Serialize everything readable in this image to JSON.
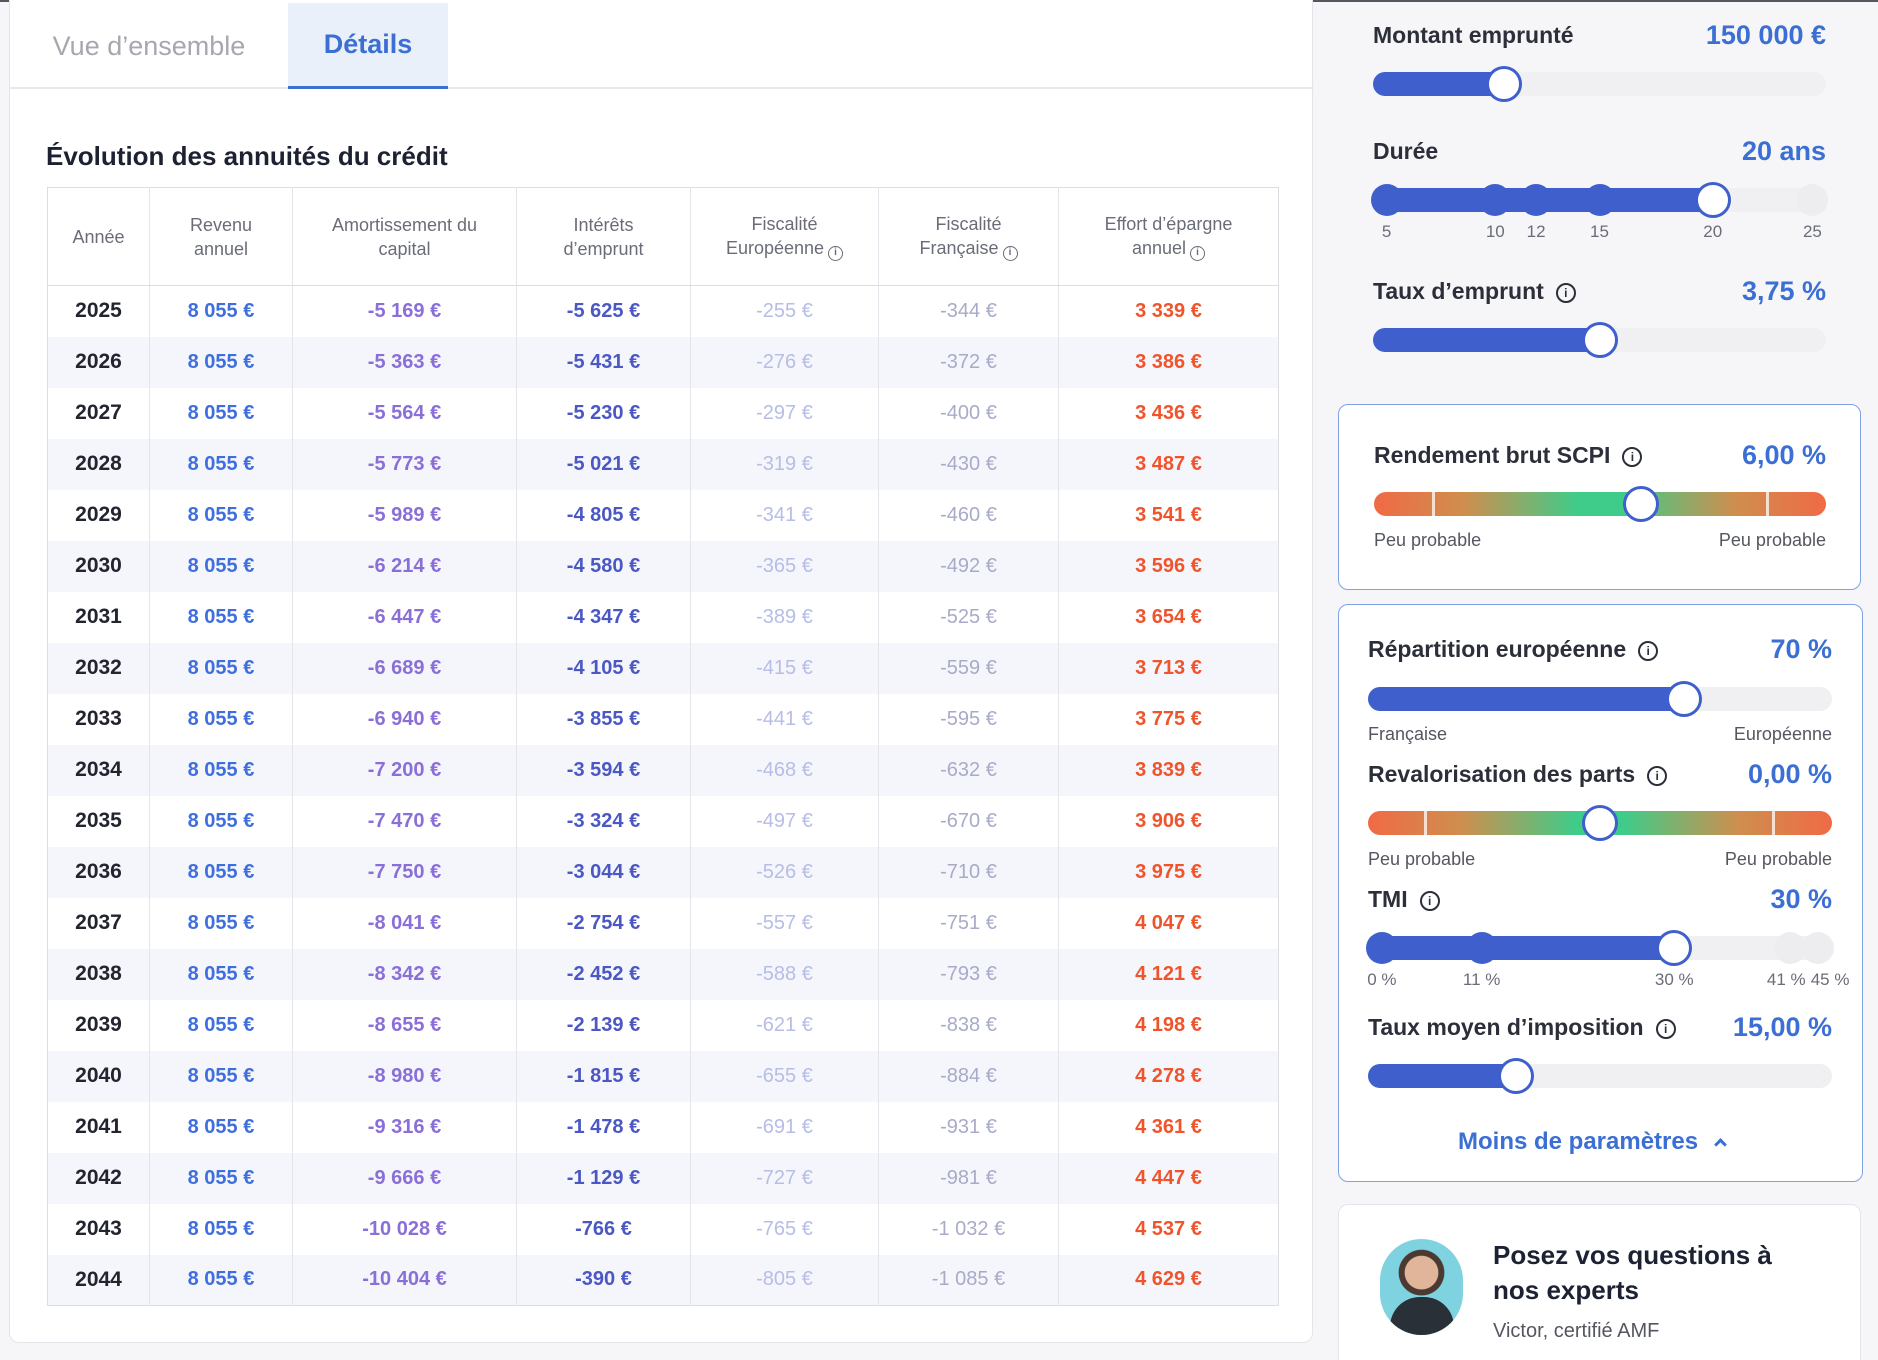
{
  "tabs": [
    {
      "label": "Vue d’ensemble",
      "active": false
    },
    {
      "label": "Détails",
      "active": true
    }
  ],
  "table": {
    "title": "Évolution des annuités du crédit",
    "headers": [
      {
        "label": "Année",
        "info": false
      },
      {
        "label": "Revenu annuel",
        "info": false
      },
      {
        "label": "Amortissement du capital",
        "info": false
      },
      {
        "label": "Intérêts d’emprunt",
        "info": false
      },
      {
        "label": "Fiscalité Européenne",
        "info": true
      },
      {
        "label": "Fiscalité Française",
        "info": true
      },
      {
        "label": "Effort d’épargne annuel",
        "info": true
      }
    ],
    "rows": [
      [
        "2025",
        "8 055 €",
        "-5 169 €",
        "-5 625 €",
        "-255 €",
        "-344 €",
        "3 339 €"
      ],
      [
        "2026",
        "8 055 €",
        "-5 363 €",
        "-5 431 €",
        "-276 €",
        "-372 €",
        "3 386 €"
      ],
      [
        "2027",
        "8 055 €",
        "-5 564 €",
        "-5 230 €",
        "-297 €",
        "-400 €",
        "3 436 €"
      ],
      [
        "2028",
        "8 055 €",
        "-5 773 €",
        "-5 021 €",
        "-319 €",
        "-430 €",
        "3 487 €"
      ],
      [
        "2029",
        "8 055 €",
        "-5 989 €",
        "-4 805 €",
        "-341 €",
        "-460 €",
        "3 541 €"
      ],
      [
        "2030",
        "8 055 €",
        "-6 214 €",
        "-4 580 €",
        "-365 €",
        "-492 €",
        "3 596 €"
      ],
      [
        "2031",
        "8 055 €",
        "-6 447 €",
        "-4 347 €",
        "-389 €",
        "-525 €",
        "3 654 €"
      ],
      [
        "2032",
        "8 055 €",
        "-6 689 €",
        "-4 105 €",
        "-415 €",
        "-559 €",
        "3 713 €"
      ],
      [
        "2033",
        "8 055 €",
        "-6 940 €",
        "-3 855 €",
        "-441 €",
        "-595 €",
        "3 775 €"
      ],
      [
        "2034",
        "8 055 €",
        "-7 200 €",
        "-3 594 €",
        "-468 €",
        "-632 €",
        "3 839 €"
      ],
      [
        "2035",
        "8 055 €",
        "-7 470 €",
        "-3 324 €",
        "-497 €",
        "-670 €",
        "3 906 €"
      ],
      [
        "2036",
        "8 055 €",
        "-7 750 €",
        "-3 044 €",
        "-526 €",
        "-710 €",
        "3 975 €"
      ],
      [
        "2037",
        "8 055 €",
        "-8 041 €",
        "-2 754 €",
        "-557 €",
        "-751 €",
        "4 047 €"
      ],
      [
        "2038",
        "8 055 €",
        "-8 342 €",
        "-2 452 €",
        "-588 €",
        "-793 €",
        "4 121 €"
      ],
      [
        "2039",
        "8 055 €",
        "-8 655 €",
        "-2 139 €",
        "-621 €",
        "-838 €",
        "4 198 €"
      ],
      [
        "2040",
        "8 055 €",
        "-8 980 €",
        "-1 815 €",
        "-655 €",
        "-884 €",
        "4 278 €"
      ],
      [
        "2041",
        "8 055 €",
        "-9 316 €",
        "-1 478 €",
        "-691 €",
        "-931 €",
        "4 361 €"
      ],
      [
        "2042",
        "8 055 €",
        "-9 666 €",
        "-1 129 €",
        "-727 €",
        "-981 €",
        "4 447 €"
      ],
      [
        "2043",
        "8 055 €",
        "-10 028 €",
        "-766 €",
        "-765 €",
        "-1 032 €",
        "4 537 €"
      ],
      [
        "2044",
        "8 055 €",
        "-10 404 €",
        "-390 €",
        "-805 €",
        "-1 085 €",
        "4 629 €"
      ]
    ]
  },
  "params": {
    "montant": {
      "label": "Montant emprunté",
      "value": "150 000 €",
      "fraction": 0.29
    },
    "duree": {
      "label": "Durée",
      "value": "20 ans",
      "fraction": 0.75,
      "ticks": [
        "5",
        "10",
        "12",
        "15",
        "20",
        "25"
      ]
    },
    "taux": {
      "label": "Taux d’emprunt",
      "value": "3,75 %",
      "fraction": 0.5
    },
    "rendement": {
      "label": "Rendement brut SCPI",
      "value": "6,00 %",
      "fraction": 0.59,
      "hint_left": "Peu probable",
      "hint_right": "Peu probable"
    },
    "repartition": {
      "label": "Répartition européenne",
      "value": "70 %",
      "fraction": 0.68,
      "hint_left": "Française",
      "hint_right": "Européenne"
    },
    "revalorisation": {
      "label": "Revalorisation des parts",
      "value": "0,00 %",
      "fraction": 0.5,
      "hint_left": "Peu probable",
      "hint_right": "Peu probable"
    },
    "tmi": {
      "label": "TMI",
      "value": "30 %",
      "fraction": 0.66,
      "ticks": [
        "0 %",
        "11 %",
        "30 %",
        "41 %",
        "45 %"
      ]
    },
    "taux_moyen": {
      "label": "Taux moyen d’imposition",
      "value": "15,00 %",
      "fraction": 0.32
    }
  },
  "less_params_label": "Moins de paramètres",
  "expert": {
    "title": "Posez vos questions à nos experts",
    "subtitle": "Victor, certifié AMF"
  },
  "colors": {
    "accent": "#3b6fd3",
    "slider": "#3f60cc",
    "effort": "#f0542c"
  }
}
